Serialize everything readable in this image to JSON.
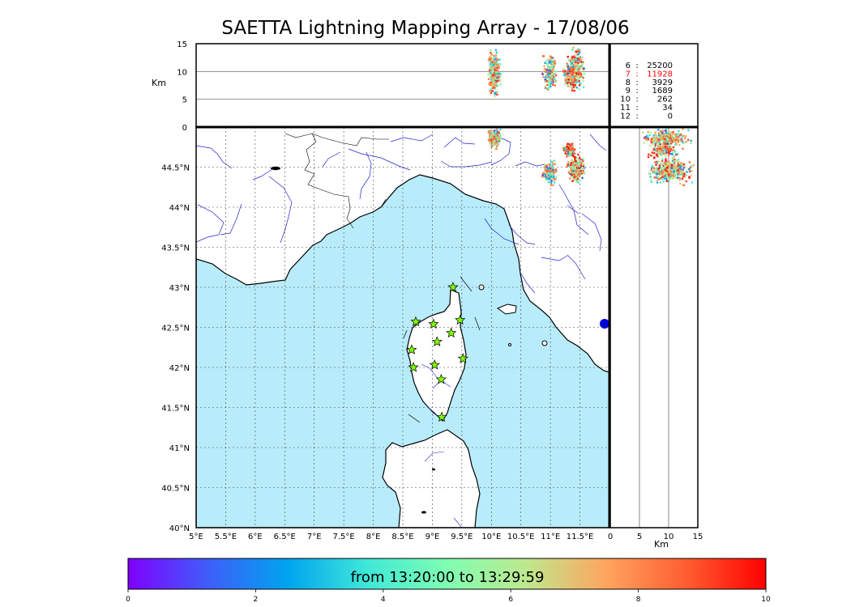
{
  "title": "SAETTA Lightning Mapping Array - 17/08/06",
  "altitude_axis": {
    "unit": "Km",
    "ticks": [
      "15",
      "10",
      "5",
      "0"
    ],
    "tick_values": [
      15,
      10,
      5,
      0
    ],
    "range": [
      0,
      15
    ]
  },
  "side_axis": {
    "unit": "Km",
    "ticks": [
      "0",
      "5",
      "10",
      "15"
    ],
    "tick_values": [
      0,
      5,
      10,
      15
    ],
    "range": [
      0,
      15
    ]
  },
  "map": {
    "lon_range": [
      5.0,
      12.0
    ],
    "lat_range": [
      40.0,
      45.0
    ],
    "lon_ticks": [
      "5°E",
      "5.5°E",
      "6°E",
      "6.5°E",
      "7°E",
      "7.5°E",
      "8°E",
      "8.5°E",
      "9°E",
      "9.5°E",
      "10°E",
      "10.5°E",
      "11°E",
      "11.5°E"
    ],
    "lon_values": [
      5.0,
      5.5,
      6.0,
      6.5,
      7.0,
      7.5,
      8.0,
      8.5,
      9.0,
      9.5,
      10.0,
      10.5,
      11.0,
      11.5
    ],
    "lat_ticks": [
      "40°N",
      "40.5°N",
      "41°N",
      "41.5°N",
      "42°N",
      "42.5°N",
      "43°N",
      "43.5°N",
      "44°N",
      "44.5°N"
    ],
    "lat_values": [
      40.0,
      40.5,
      41.0,
      41.5,
      42.0,
      42.5,
      43.0,
      43.5,
      44.0,
      44.5
    ],
    "sea_color": "#b8ecfb",
    "land_color": "#ffffff",
    "river_color": "#2222cc",
    "grid_style": "dotted",
    "station_color": "#7fff00",
    "station_marker": "star",
    "stations": [
      {
        "lon": 9.35,
        "lat": 43.0
      },
      {
        "lon": 8.72,
        "lat": 42.57
      },
      {
        "lon": 9.02,
        "lat": 42.54
      },
      {
        "lon": 9.47,
        "lat": 42.59
      },
      {
        "lon": 9.32,
        "lat": 42.43
      },
      {
        "lon": 9.08,
        "lat": 42.32
      },
      {
        "lon": 8.65,
        "lat": 42.22
      },
      {
        "lon": 9.52,
        "lat": 42.11
      },
      {
        "lon": 9.04,
        "lat": 42.03
      },
      {
        "lon": 8.68,
        "lat": 42.0
      },
      {
        "lon": 9.15,
        "lat": 41.85
      },
      {
        "lon": 9.16,
        "lat": 41.38
      }
    ],
    "blue_marker": {
      "lon": 11.93,
      "lat": 42.58,
      "color": "#0000dd"
    }
  },
  "flash_counts": [
    {
      "stations": "6",
      "sep": ":",
      "count": "25200",
      "color": "#000000"
    },
    {
      "stations": "7",
      "sep": ":",
      "count": "11928",
      "color": "#ff0000"
    },
    {
      "stations": "8",
      "sep": ":",
      "count": "3929",
      "color": "#000000"
    },
    {
      "stations": "9",
      "sep": ":",
      "count": "1689",
      "color": "#000000"
    },
    {
      "stations": "10",
      "sep": ":",
      "count": "262",
      "color": "#000000"
    },
    {
      "stations": "11",
      "sep": ":",
      "count": "34",
      "color": "#000000"
    },
    {
      "stations": "12",
      "sep": ":",
      "count": "0",
      "color": "#000000"
    }
  ],
  "colorbar": {
    "label": "from 13:20:00 to 13:29:59",
    "ticks": [
      "0",
      "2",
      "4",
      "6",
      "8",
      "10"
    ],
    "tick_values": [
      0,
      2,
      4,
      6,
      8,
      10
    ],
    "range": [
      0,
      10
    ],
    "colors": [
      "#7f00ff",
      "#3f5df9",
      "#00a4ef",
      "#3fe8d7",
      "#7ffeb2",
      "#bfe88e",
      "#ffa45e",
      "#ff5d30",
      "#ff0000"
    ]
  },
  "lightning_clusters": [
    {
      "lon_range": [
        9.92,
        10.18
      ],
      "lat_range": [
        44.72,
        45.0
      ],
      "alt_range": [
        4.5,
        15.0
      ],
      "n": 260,
      "time_range": [
        0.5,
        9.5
      ]
    },
    {
      "lon_range": [
        10.82,
        11.15
      ],
      "lat_range": [
        44.25,
        44.62
      ],
      "alt_range": [
        6.0,
        14.0
      ],
      "n": 160,
      "time_range": [
        0.0,
        9.0
      ]
    },
    {
      "lon_range": [
        11.25,
        11.62
      ],
      "lat_range": [
        44.28,
        44.68
      ],
      "alt_range": [
        6.0,
        15.0
      ],
      "n": 220,
      "time_range": [
        1.0,
        10.0
      ]
    },
    {
      "lon_range": [
        11.2,
        11.45
      ],
      "lat_range": [
        44.6,
        44.82
      ],
      "alt_range": [
        6.0,
        12.0
      ],
      "n": 110,
      "time_range": [
        1.0,
        10.0
      ]
    }
  ]
}
